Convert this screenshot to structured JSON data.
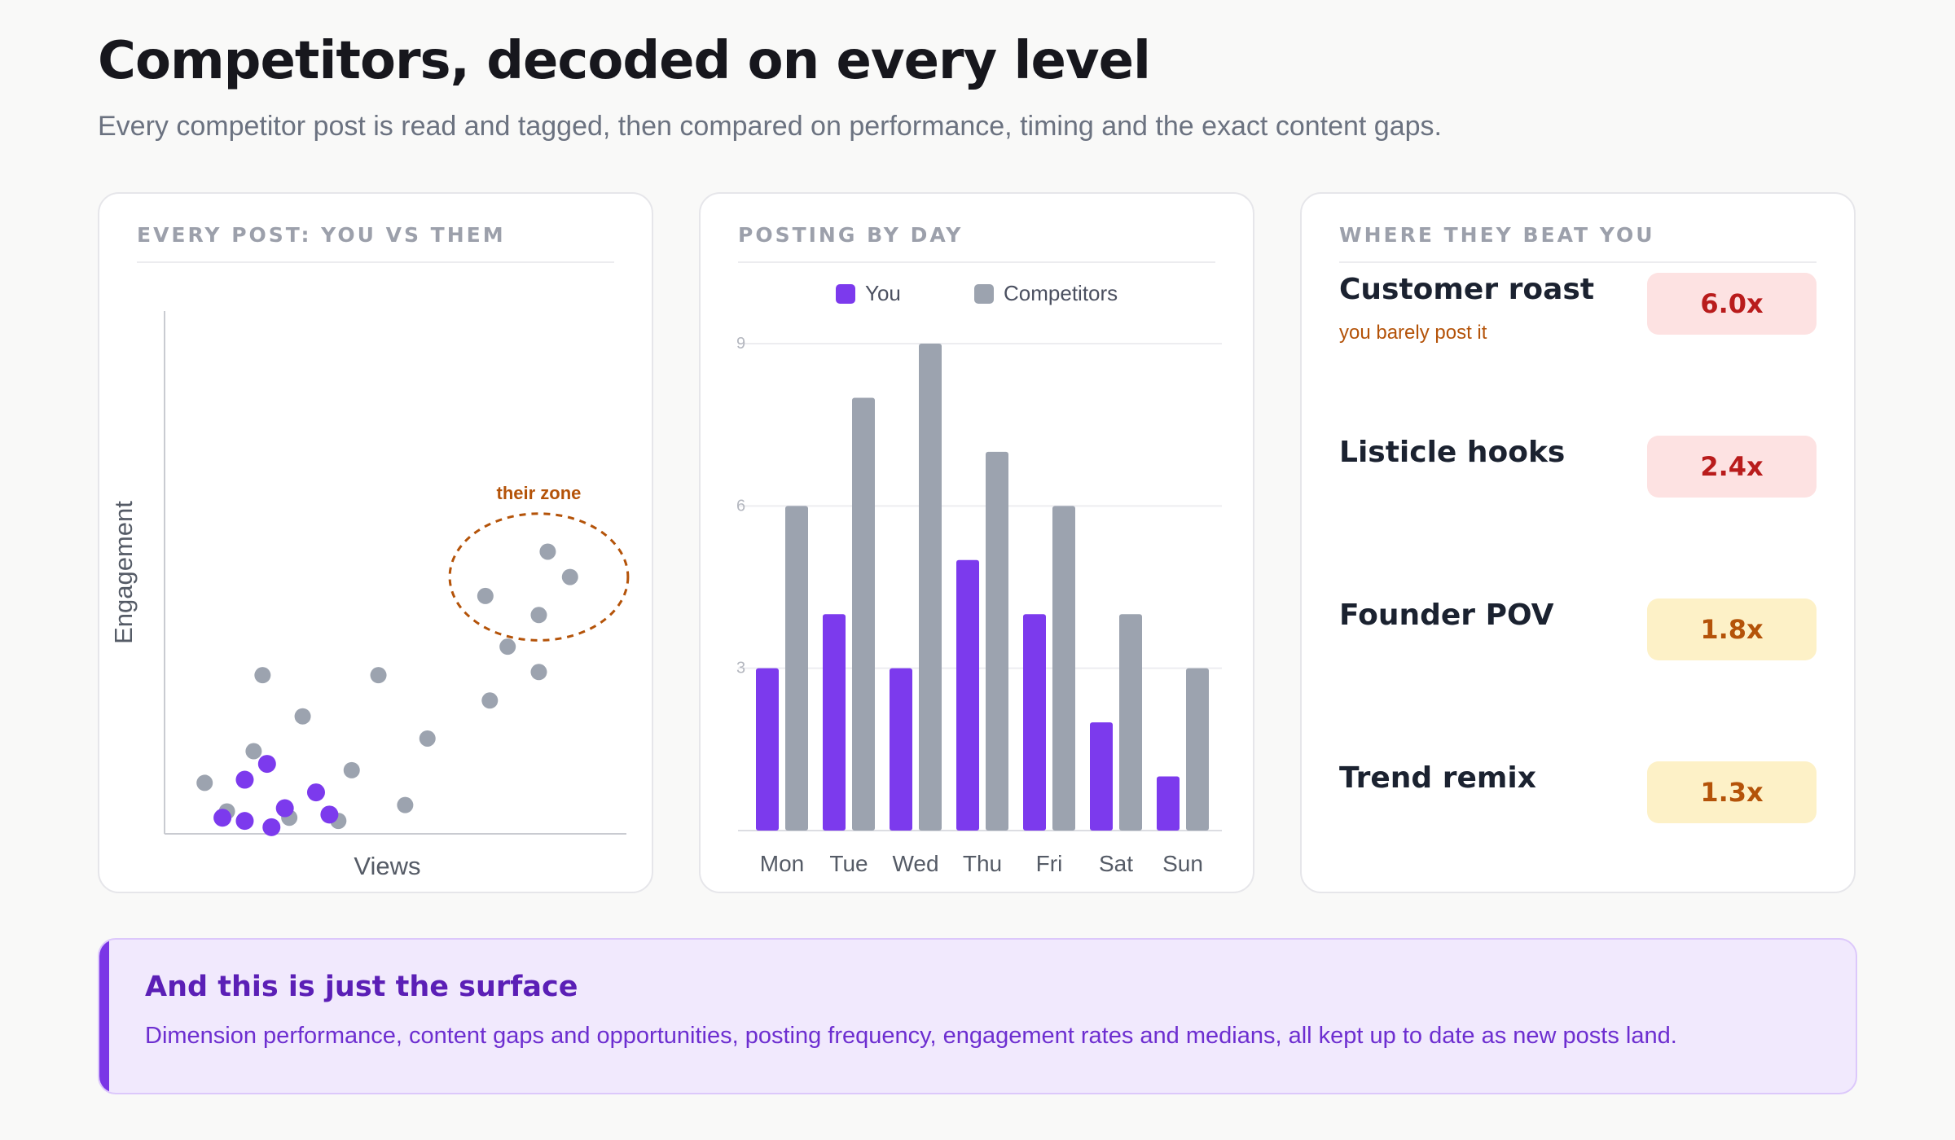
{
  "header": {
    "title": "Competitors, decoded on every level",
    "subtitle": "Every competitor post is read and tagged, then compared on performance, timing and the exact content gaps."
  },
  "colors": {
    "you": "#7c3aed",
    "competitors": "#9ca3af",
    "zone": "#b45309",
    "badge_high_bg": "#fde2e2",
    "badge_high_text": "#b91c1c",
    "badge_mid_bg": "#fdf1c7",
    "badge_mid_text": "#b45309"
  },
  "scatter_card": {
    "title": "EVERY POST: YOU VS THEM",
    "zone_label": "their zone"
  },
  "bar_card": {
    "title": "POSTING BY DAY"
  },
  "gaps_card": {
    "title": "WHERE THEY BEAT YOU",
    "items": [
      {
        "label": "Customer roast",
        "note": "you barely post it",
        "badge": "6.0x",
        "level": "high"
      },
      {
        "label": "Listicle hooks",
        "note": "",
        "badge": "2.4x",
        "level": "high"
      },
      {
        "label": "Founder POV",
        "note": "",
        "badge": "1.8x",
        "level": "mid"
      },
      {
        "label": "Trend remix",
        "note": "",
        "badge": "1.3x",
        "level": "mid"
      }
    ]
  },
  "callout": {
    "title": "And this is just the surface",
    "body": "Dimension performance, content gaps and opportunities, posting frequency, engagement rates and medians, all kept up to date as new posts land."
  },
  "chart_data": [
    {
      "type": "scatter",
      "title": "",
      "xlabel": "Views",
      "ylabel": "Engagement",
      "xlim": [
        0,
        100
      ],
      "ylim": [
        0,
        100
      ],
      "grid": false,
      "annotations": [
        {
          "text": "their zone",
          "shape": "dashed-circle",
          "cx": 84,
          "cy": 78,
          "r": 20
        }
      ],
      "series": [
        {
          "name": "You",
          "points": [
            [
              18,
              1
            ],
            [
              24,
              -1
            ],
            [
              13,
              2
            ],
            [
              27,
              5
            ],
            [
              37,
              3
            ],
            [
              18,
              14
            ],
            [
              23,
              19
            ],
            [
              34,
              10
            ]
          ]
        },
        {
          "name": "Competitors",
          "points": [
            [
              9,
              13
            ],
            [
              14,
              4
            ],
            [
              28,
              2
            ],
            [
              39,
              1
            ],
            [
              42,
              17
            ],
            [
              54,
              6
            ],
            [
              59,
              27
            ],
            [
              48,
              47
            ],
            [
              22,
              47
            ],
            [
              31,
              34
            ],
            [
              20,
              23
            ],
            [
              73,
              39
            ],
            [
              77,
              56
            ],
            [
              84,
              48
            ],
            [
              72,
              72
            ],
            [
              84,
              66
            ],
            [
              86,
              86
            ],
            [
              91,
              78
            ]
          ]
        }
      ]
    },
    {
      "type": "bar",
      "title": "",
      "categories": [
        "Mon",
        "Tue",
        "Wed",
        "Thu",
        "Fri",
        "Sat",
        "Sun"
      ],
      "ylim": [
        0,
        9
      ],
      "yticks": [
        3,
        6,
        9
      ],
      "grid": true,
      "legend": "top",
      "series": [
        {
          "name": "You",
          "values": [
            3,
            4,
            3,
            5,
            4,
            2,
            1
          ]
        },
        {
          "name": "Competitors",
          "values": [
            6,
            8,
            9,
            7,
            6,
            4,
            3
          ]
        }
      ]
    }
  ]
}
